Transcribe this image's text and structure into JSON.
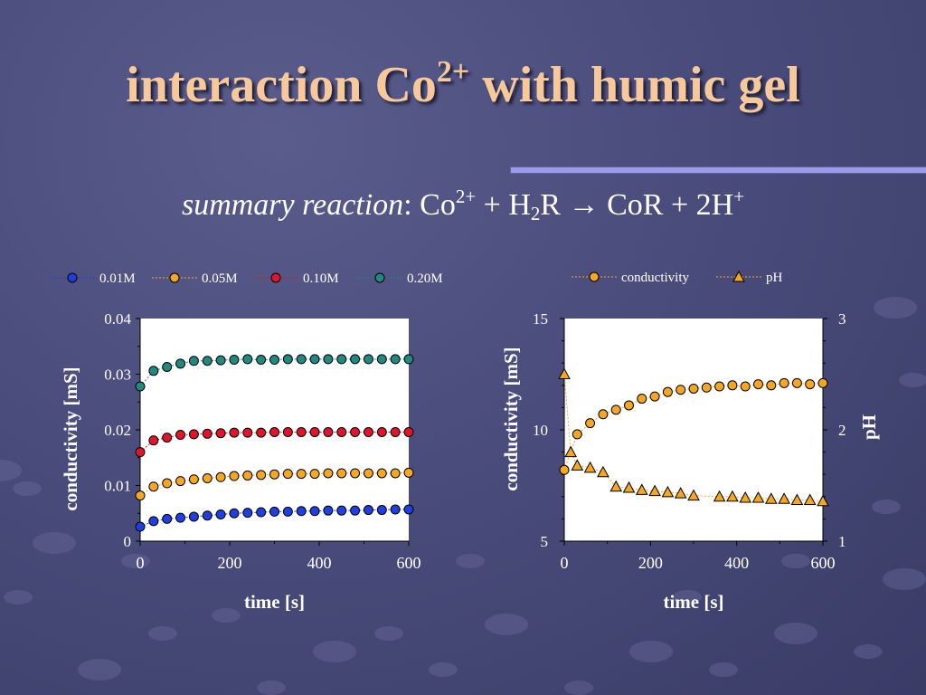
{
  "slide": {
    "title_main": "interaction Co",
    "title_sup": "2+",
    "title_rest": " with humic gel",
    "subtitle_label": "summary reaction",
    "subtitle_sep": ": ",
    "subtitle_co": "Co",
    "subtitle_co_sup": "2+",
    "subtitle_plus1": " + H",
    "subtitle_h_sub": "2",
    "subtitle_r": "R ",
    "subtitle_arrow": "→",
    "subtitle_cor": " CoR + 2H",
    "subtitle_h_sup": "+"
  },
  "colors": {
    "title": "#f6c89a",
    "series_0_01M": "#1f3fe0",
    "series_0_05M": "#f5a623",
    "series_0_10M": "#e0142a",
    "series_0_20M": "#1f8a80",
    "conductivity": "#f5a623",
    "pH": "#f5a623"
  },
  "chart_data": [
    {
      "type": "scatter",
      "xlabel": "time [s]",
      "ylabel": "conductivity [mS]",
      "xlim": [
        0,
        600
      ],
      "ylim": [
        0,
        0.04
      ],
      "xticks": [
        "0",
        "200",
        "400",
        "600"
      ],
      "yticks": [
        "0",
        "0.01",
        "0.02",
        "0.03",
        "0.04"
      ],
      "legend_placement": "top",
      "series": [
        {
          "name": "0.01M",
          "marker": "circle",
          "color": "#1f3fe0",
          "x": [
            0,
            30,
            60,
            90,
            120,
            150,
            180,
            210,
            240,
            270,
            300,
            330,
            360,
            390,
            420,
            450,
            480,
            510,
            540,
            570,
            600
          ],
          "y": [
            0.0026,
            0.0036,
            0.004,
            0.0042,
            0.0044,
            0.0046,
            0.0048,
            0.005,
            0.0051,
            0.0052,
            0.0053,
            0.0053,
            0.0054,
            0.0054,
            0.0055,
            0.0055,
            0.0055,
            0.0056,
            0.0056,
            0.0057,
            0.0057
          ]
        },
        {
          "name": "0.05M",
          "marker": "circle",
          "color": "#f5a623",
          "x": [
            0,
            30,
            60,
            90,
            120,
            150,
            180,
            210,
            240,
            270,
            300,
            330,
            360,
            390,
            420,
            450,
            480,
            510,
            540,
            570,
            600
          ],
          "y": [
            0.0082,
            0.0098,
            0.0104,
            0.0108,
            0.0111,
            0.0113,
            0.0115,
            0.0117,
            0.0118,
            0.0119,
            0.012,
            0.0121,
            0.0121,
            0.0121,
            0.0122,
            0.0122,
            0.0122,
            0.0122,
            0.0122,
            0.0122,
            0.0123
          ]
        },
        {
          "name": "0.10M",
          "marker": "circle",
          "color": "#e0142a",
          "x": [
            0,
            30,
            60,
            90,
            120,
            150,
            180,
            210,
            240,
            270,
            300,
            330,
            360,
            390,
            420,
            450,
            480,
            510,
            540,
            570,
            600
          ],
          "y": [
            0.016,
            0.0181,
            0.0186,
            0.0191,
            0.0192,
            0.0193,
            0.0194,
            0.0195,
            0.0195,
            0.0195,
            0.0196,
            0.0196,
            0.0196,
            0.0196,
            0.0196,
            0.0196,
            0.0196,
            0.0196,
            0.0196,
            0.0196,
            0.0196
          ]
        },
        {
          "name": "0.20M",
          "marker": "circle",
          "color": "#1f8a80",
          "x": [
            0,
            30,
            60,
            90,
            120,
            150,
            180,
            210,
            240,
            270,
            300,
            330,
            360,
            390,
            420,
            450,
            480,
            510,
            540,
            570,
            600
          ],
          "y": [
            0.0278,
            0.0306,
            0.0313,
            0.0319,
            0.0324,
            0.0324,
            0.0325,
            0.0326,
            0.0327,
            0.0326,
            0.0326,
            0.0327,
            0.0327,
            0.0327,
            0.0327,
            0.0327,
            0.0327,
            0.0327,
            0.0327,
            0.0327,
            0.0327
          ]
        }
      ]
    },
    {
      "type": "scatter",
      "xlabel": "time [s]",
      "ylabel": "conductivity [mS]",
      "y2label": "pH",
      "xlim": [
        0,
        600
      ],
      "ylim": [
        5,
        15
      ],
      "y2lim": [
        1,
        3
      ],
      "xticks": [
        "0",
        "200",
        "400",
        "600"
      ],
      "yticks": [
        "5",
        "10",
        "15"
      ],
      "y2ticks": [
        "1",
        "2",
        "3"
      ],
      "legend_placement": "top",
      "series": [
        {
          "name": "conductivity",
          "marker": "circle",
          "color": "#f5a623",
          "axis": "left",
          "x": [
            0,
            30,
            60,
            90,
            120,
            150,
            180,
            210,
            240,
            270,
            300,
            330,
            360,
            390,
            420,
            450,
            480,
            510,
            540,
            570,
            600
          ],
          "y": [
            8.2,
            9.8,
            10.3,
            10.7,
            10.9,
            11.1,
            11.4,
            11.5,
            11.7,
            11.8,
            11.85,
            11.9,
            11.95,
            12.0,
            11.95,
            12.05,
            12.0,
            12.1,
            12.1,
            12.05,
            12.1
          ]
        },
        {
          "name": "pH",
          "marker": "triangle",
          "color": "#f5a623",
          "axis": "right",
          "x": [
            0,
            15,
            30,
            60,
            90,
            120,
            150,
            180,
            210,
            240,
            270,
            300,
            360,
            390,
            420,
            450,
            480,
            510,
            540,
            570,
            600
          ],
          "y": [
            2.5,
            1.8,
            1.68,
            1.66,
            1.62,
            1.49,
            1.48,
            1.46,
            1.45,
            1.44,
            1.43,
            1.41,
            1.4,
            1.4,
            1.39,
            1.39,
            1.38,
            1.38,
            1.37,
            1.37,
            1.36
          ]
        }
      ]
    }
  ]
}
